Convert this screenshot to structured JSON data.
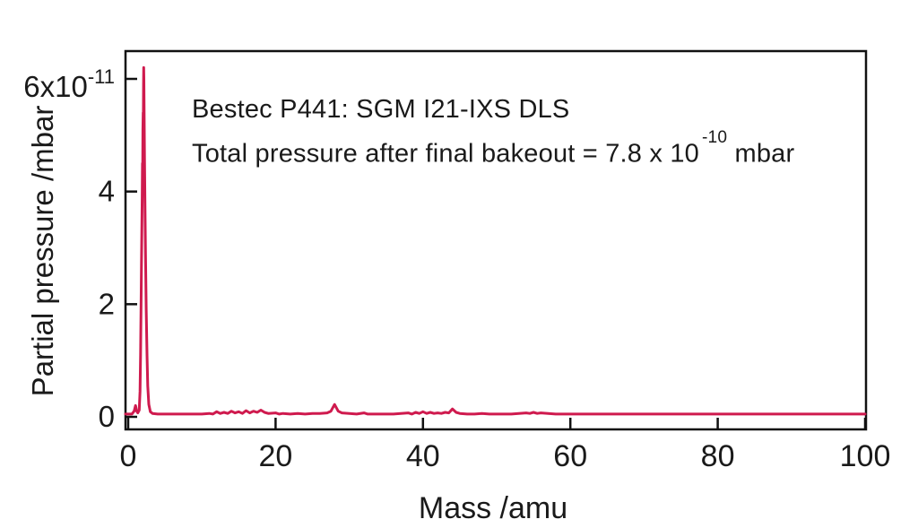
{
  "figure": {
    "background": "#ffffff",
    "text_color": "#1a1a1a",
    "axis_color": "#111111"
  },
  "chart_data": {
    "type": "line",
    "title": "Bestec P441: SGM I21-IXS DLS",
    "annotations": [
      {
        "id": "instrument",
        "text": "Bestec P441: SGM I21-IXS DLS"
      },
      {
        "id": "total-pressure",
        "pre": "Total pressure after final bakeout = 7.8 x 10",
        "sup": "-10",
        "post": " mbar"
      }
    ],
    "xlabel": "Mass /amu",
    "ylabel": "Partial pressure /mbar",
    "x_range": [
      -0.4,
      100.1
    ],
    "y_range": [
      -0.22,
      6.48
    ],
    "y_units": "1e-11 mbar",
    "grid": false,
    "legend": null,
    "line_color": "#cf1a4e",
    "x_ticks": [
      {
        "v": 0,
        "label": "0"
      },
      {
        "v": 20,
        "label": "20"
      },
      {
        "v": 40,
        "label": "40"
      },
      {
        "v": 60,
        "label": "60"
      },
      {
        "v": 80,
        "label": "80"
      },
      {
        "v": 100,
        "label": "100"
      }
    ],
    "y_ticks": [
      {
        "v": 0,
        "label": "0"
      },
      {
        "v": 2,
        "label": "2"
      },
      {
        "v": 4,
        "label": "4"
      },
      {
        "v": 6,
        "label": "6x10",
        "sup": "-11"
      }
    ],
    "series": [
      {
        "name": "partial-pressure-spectrum",
        "units": "[mass_amu, pressure_x1e-11_mbar]",
        "points": [
          [
            0,
            0.05
          ],
          [
            0.5,
            0.05
          ],
          [
            0.8,
            0.1
          ],
          [
            1.0,
            0.2
          ],
          [
            1.15,
            0.1
          ],
          [
            1.3,
            0.07
          ],
          [
            1.5,
            0.12
          ],
          [
            1.6,
            0.45
          ],
          [
            1.68,
            1.1
          ],
          [
            1.74,
            1.9
          ],
          [
            1.8,
            2.7
          ],
          [
            1.85,
            3.3
          ],
          [
            1.9,
            3.9
          ],
          [
            1.94,
            4.5
          ],
          [
            1.97,
            4.45
          ],
          [
            2.0,
            5.1
          ],
          [
            2.03,
            5.4
          ],
          [
            2.05,
            5.35
          ],
          [
            2.08,
            5.9
          ],
          [
            2.1,
            6.2
          ],
          [
            2.13,
            6.0
          ],
          [
            2.17,
            5.4
          ],
          [
            2.22,
            4.6
          ],
          [
            2.28,
            3.8
          ],
          [
            2.35,
            2.9
          ],
          [
            2.45,
            1.9
          ],
          [
            2.55,
            1.1
          ],
          [
            2.65,
            0.55
          ],
          [
            2.8,
            0.22
          ],
          [
            3.0,
            0.09
          ],
          [
            3.3,
            0.06
          ],
          [
            4,
            0.05
          ],
          [
            5,
            0.05
          ],
          [
            6,
            0.05
          ],
          [
            7,
            0.05
          ],
          [
            8,
            0.05
          ],
          [
            9,
            0.05
          ],
          [
            10,
            0.05
          ],
          [
            11,
            0.06
          ],
          [
            11.5,
            0.05
          ],
          [
            12,
            0.09
          ],
          [
            12.5,
            0.06
          ],
          [
            13,
            0.08
          ],
          [
            13.5,
            0.06
          ],
          [
            14,
            0.1
          ],
          [
            14.5,
            0.07
          ],
          [
            15,
            0.09
          ],
          [
            15.5,
            0.06
          ],
          [
            16,
            0.11
          ],
          [
            16.5,
            0.07
          ],
          [
            17,
            0.1
          ],
          [
            17.5,
            0.08
          ],
          [
            18,
            0.12
          ],
          [
            18.5,
            0.08
          ],
          [
            19,
            0.06
          ],
          [
            20,
            0.07
          ],
          [
            20.5,
            0.05
          ],
          [
            21,
            0.06
          ],
          [
            22,
            0.05
          ],
          [
            23,
            0.06
          ],
          [
            24,
            0.05
          ],
          [
            25,
            0.06
          ],
          [
            26,
            0.06
          ],
          [
            27,
            0.07
          ],
          [
            27.5,
            0.1
          ],
          [
            28,
            0.22
          ],
          [
            28.5,
            0.1
          ],
          [
            29,
            0.07
          ],
          [
            30,
            0.06
          ],
          [
            31,
            0.05
          ],
          [
            32,
            0.07
          ],
          [
            32.5,
            0.05
          ],
          [
            33,
            0.05
          ],
          [
            34,
            0.05
          ],
          [
            35,
            0.05
          ],
          [
            36,
            0.05
          ],
          [
            37,
            0.06
          ],
          [
            38,
            0.07
          ],
          [
            38.5,
            0.05
          ],
          [
            39,
            0.08
          ],
          [
            39.5,
            0.06
          ],
          [
            40,
            0.09
          ],
          [
            40.5,
            0.06
          ],
          [
            41,
            0.08
          ],
          [
            41.5,
            0.06
          ],
          [
            42,
            0.07
          ],
          [
            42.5,
            0.06
          ],
          [
            43,
            0.08
          ],
          [
            43.5,
            0.07
          ],
          [
            44,
            0.14
          ],
          [
            44.5,
            0.08
          ],
          [
            45,
            0.06
          ],
          [
            46,
            0.05
          ],
          [
            47,
            0.05
          ],
          [
            48,
            0.06
          ],
          [
            49,
            0.05
          ],
          [
            50,
            0.05
          ],
          [
            51,
            0.05
          ],
          [
            52,
            0.05
          ],
          [
            53,
            0.06
          ],
          [
            54,
            0.07
          ],
          [
            54.5,
            0.06
          ],
          [
            55,
            0.08
          ],
          [
            55.5,
            0.06
          ],
          [
            56,
            0.07
          ],
          [
            57,
            0.06
          ],
          [
            58,
            0.05
          ],
          [
            60,
            0.05
          ],
          [
            62,
            0.05
          ],
          [
            64,
            0.05
          ],
          [
            66,
            0.05
          ],
          [
            68,
            0.05
          ],
          [
            70,
            0.05
          ],
          [
            72,
            0.05
          ],
          [
            75,
            0.05
          ],
          [
            78,
            0.05
          ],
          [
            80,
            0.05
          ],
          [
            82,
            0.05
          ],
          [
            85,
            0.05
          ],
          [
            88,
            0.05
          ],
          [
            90,
            0.05
          ],
          [
            92,
            0.05
          ],
          [
            95,
            0.05
          ],
          [
            98,
            0.05
          ],
          [
            100,
            0.05
          ]
        ]
      }
    ]
  }
}
